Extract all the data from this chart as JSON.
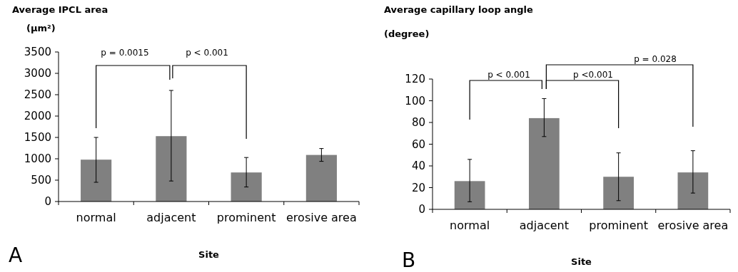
{
  "chart_data": [
    {
      "type": "bar",
      "title": "Average IPCL area",
      "ylabel": "(µm²)",
      "xlabel": "Site",
      "categories": [
        "normal",
        "adjacent",
        "prominent",
        "erosive area"
      ],
      "values": [
        980,
        1530,
        680,
        1090
      ],
      "color": "#808080",
      "errors": [
        [
          450,
          1500
        ],
        [
          480,
          2600
        ],
        [
          340,
          1030
        ],
        [
          940,
          1240
        ]
      ],
      "ylim": [
        0,
        3500
      ],
      "yticks": [
        0,
        500,
        1000,
        1500,
        2000,
        2500,
        3000,
        3500
      ],
      "annotations": [
        "p = 0.0015",
        "p < 0.001",
        "A"
      ]
    },
    {
      "type": "bar",
      "title": "Average capillary loop angle",
      "ylabel": "(degree)",
      "xlabel": "Site",
      "categories": [
        "normal",
        "adjacent",
        "prominent",
        "erosive area"
      ],
      "values": [
        26,
        84,
        30,
        34
      ],
      "color": "#808080",
      "errors": [
        [
          7,
          46
        ],
        [
          67,
          102
        ],
        [
          8,
          52
        ],
        [
          15,
          54
        ]
      ],
      "ylim": [
        0,
        120
      ],
      "yticks": [
        0,
        20,
        40,
        60,
        80,
        100,
        120
      ],
      "annotations": [
        "p < 0.001",
        "p <0.001",
        "p = 0.028",
        "B"
      ]
    }
  ]
}
